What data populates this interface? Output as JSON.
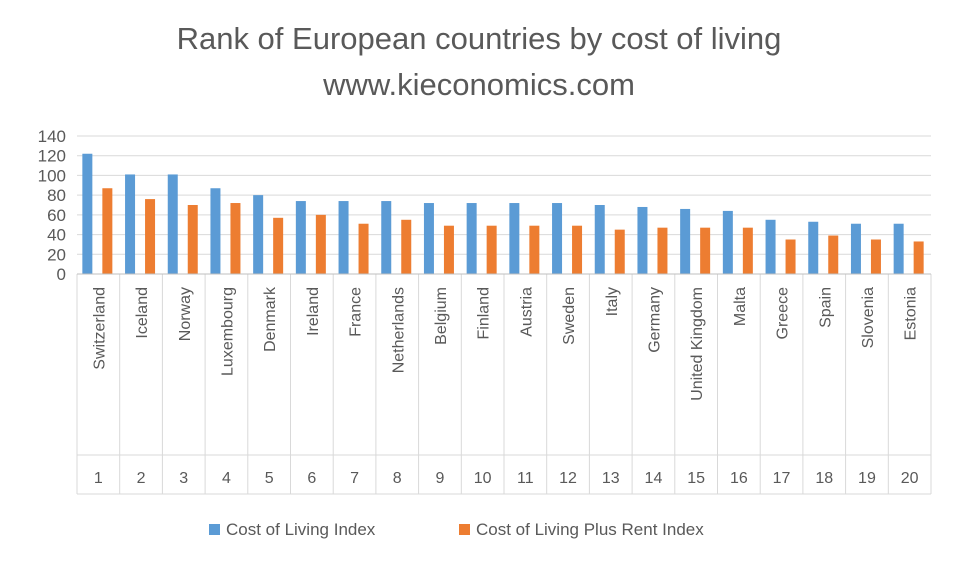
{
  "chart_data": {
    "type": "bar",
    "title": "Rank of European countries by cost of living",
    "subtitle": "www.kieconomics.com",
    "categories": [
      "Switzerland",
      "Iceland",
      "Norway",
      "Luxembourg",
      "Denmark",
      "Ireland",
      "France",
      "Netherlands",
      "Belgium",
      "Finland",
      "Austria",
      "Sweden",
      "Italy",
      "Germany",
      "United Kingdom",
      "Malta",
      "Greece",
      "Spain",
      "Slovenia",
      "Estonia"
    ],
    "ranks": [
      "1",
      "2",
      "3",
      "4",
      "5",
      "6",
      "7",
      "8",
      "9",
      "10",
      "11",
      "12",
      "13",
      "14",
      "15",
      "16",
      "17",
      "18",
      "19",
      "20"
    ],
    "series": [
      {
        "name": "Cost of Living Index",
        "color": "#5B9BD5",
        "values": [
          122,
          101,
          101,
          87,
          80,
          74,
          74,
          74,
          72,
          72,
          72,
          72,
          70,
          68,
          66,
          64,
          55,
          53,
          51,
          51
        ]
      },
      {
        "name": "Cost of Living Plus Rent Index",
        "color": "#ED7D31",
        "values": [
          87,
          76,
          70,
          72,
          57,
          60,
          51,
          55,
          49,
          49,
          49,
          49,
          45,
          47,
          47,
          47,
          35,
          39,
          35,
          33
        ]
      }
    ],
    "ylim": [
      0,
      140
    ],
    "yticks": [
      "0",
      "20",
      "40",
      "60",
      "80",
      "100",
      "120",
      "140"
    ],
    "grid": true,
    "legend_position": "bottom"
  }
}
